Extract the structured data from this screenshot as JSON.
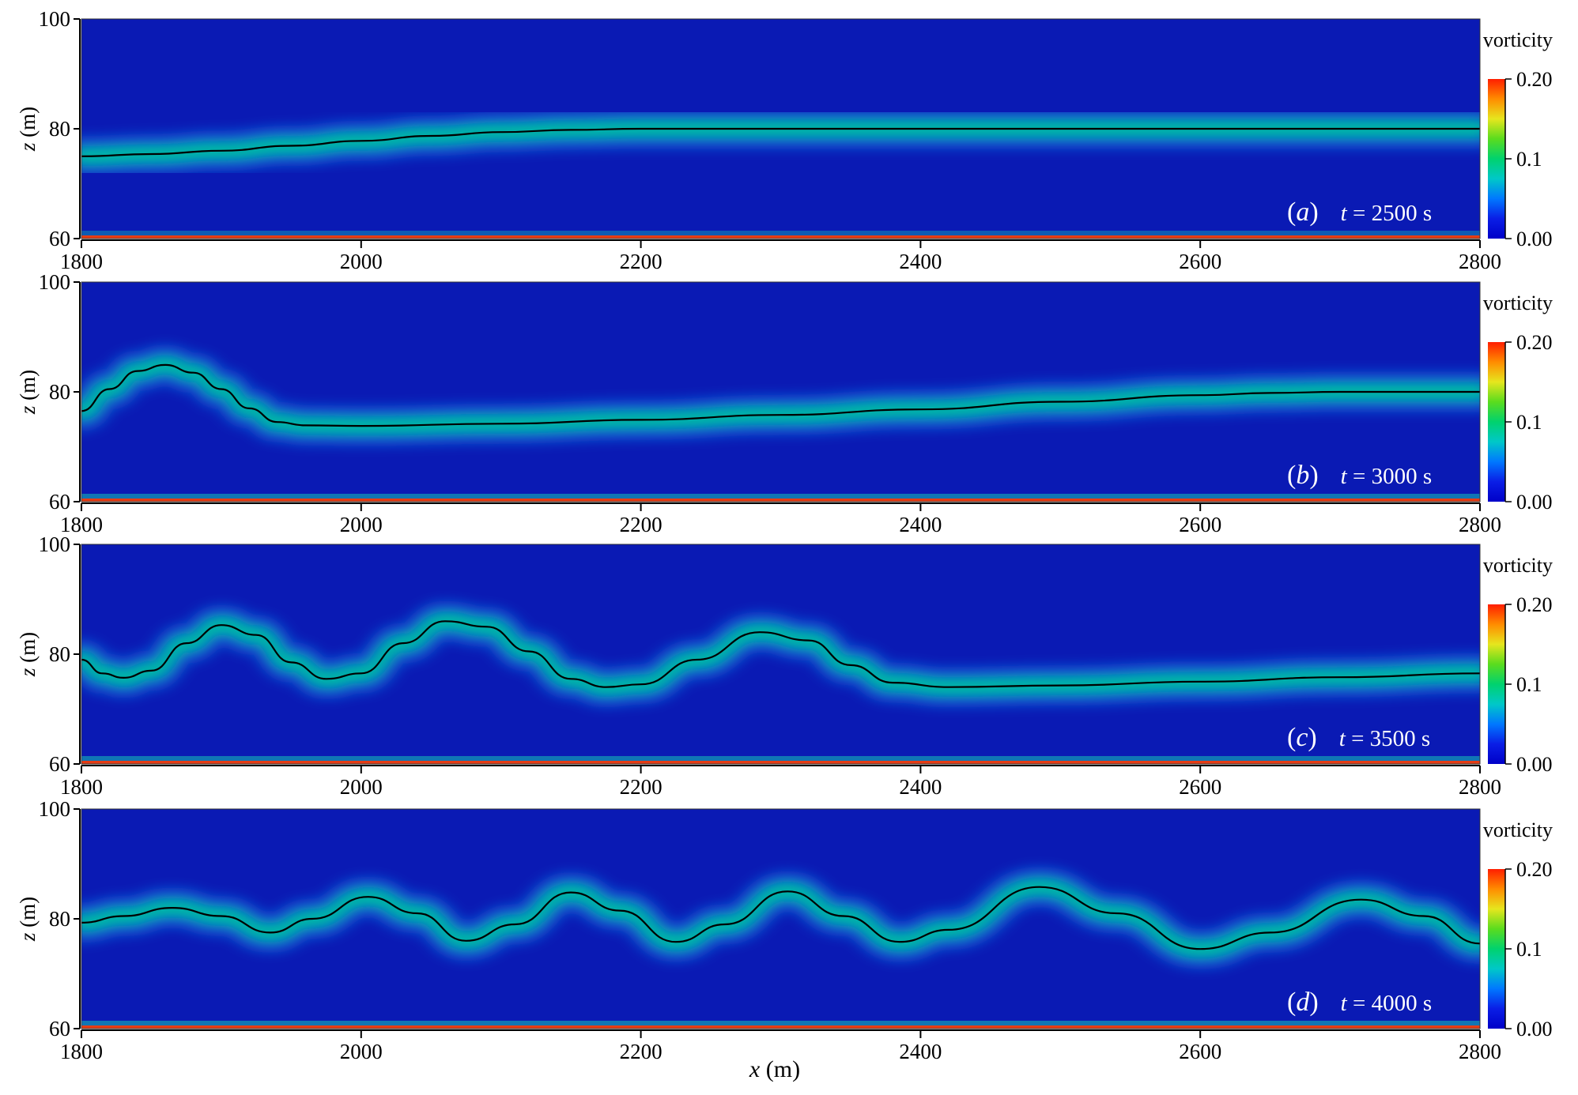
{
  "chart_data": {
    "type": "heatmap",
    "colormap": [
      "#0000c8",
      "#0a1ee6",
      "#0078ff",
      "#00c8c8",
      "#00d26e",
      "#5adc1e",
      "#e6e61e",
      "#ff8c00",
      "#ff1e00"
    ],
    "background_color": "#0a1ab4",
    "interface_color": "#000000",
    "x_axis": {
      "label_var": "x",
      "label_unit": " (m)",
      "range": [
        1800,
        2800
      ],
      "ticks": [
        "1800",
        "2000",
        "2200",
        "2400",
        "2600",
        "2800"
      ]
    },
    "y_axis": {
      "label_var": "z",
      "label_unit": " (m)",
      "range": [
        60,
        100
      ],
      "ticks": [
        "60",
        "80",
        "100"
      ]
    },
    "colorbar": {
      "title": "vorticity",
      "range": [
        0,
        0.2
      ],
      "ticks": [
        "0.00",
        "0.1",
        "0.20"
      ]
    },
    "panels": [
      {
        "letter": "a",
        "time_label": "t",
        "time_text": " = 2500 s",
        "interface": [
          [
            1800,
            75.0
          ],
          [
            1850,
            75.4
          ],
          [
            1900,
            76.0
          ],
          [
            1950,
            76.9
          ],
          [
            2000,
            77.8
          ],
          [
            2050,
            78.7
          ],
          [
            2100,
            79.4
          ],
          [
            2150,
            79.8
          ],
          [
            2200,
            80.0
          ],
          [
            2300,
            80.0
          ],
          [
            2400,
            80.0
          ],
          [
            2600,
            80.0
          ],
          [
            2800,
            80.0
          ]
        ],
        "bottom_layer_intensity": 0.15
      },
      {
        "letter": "b",
        "time_label": "t",
        "time_text": " = 3000 s",
        "interface": [
          [
            1800,
            76.5
          ],
          [
            1820,
            80.5
          ],
          [
            1840,
            83.8
          ],
          [
            1860,
            84.9
          ],
          [
            1880,
            83.5
          ],
          [
            1900,
            80.5
          ],
          [
            1920,
            77.0
          ],
          [
            1940,
            74.5
          ],
          [
            1960,
            73.9
          ],
          [
            2000,
            73.8
          ],
          [
            2100,
            74.2
          ],
          [
            2200,
            74.9
          ],
          [
            2300,
            75.8
          ],
          [
            2400,
            76.8
          ],
          [
            2500,
            78.2
          ],
          [
            2600,
            79.4
          ],
          [
            2650,
            79.8
          ],
          [
            2700,
            80.0
          ],
          [
            2800,
            80.0
          ]
        ],
        "bottom_layer_intensity": 0.5
      },
      {
        "letter": "c",
        "time_label": "t",
        "time_text": " = 3500 s",
        "interface": [
          [
            1800,
            79.0
          ],
          [
            1815,
            76.5
          ],
          [
            1830,
            75.7
          ],
          [
            1850,
            77.0
          ],
          [
            1875,
            82.0
          ],
          [
            1900,
            85.3
          ],
          [
            1925,
            83.5
          ],
          [
            1950,
            78.5
          ],
          [
            1975,
            75.5
          ],
          [
            2000,
            76.5
          ],
          [
            2030,
            82.0
          ],
          [
            2060,
            86.0
          ],
          [
            2090,
            85.0
          ],
          [
            2120,
            80.5
          ],
          [
            2150,
            75.5
          ],
          [
            2175,
            74.0
          ],
          [
            2200,
            74.5
          ],
          [
            2240,
            79.0
          ],
          [
            2285,
            84.0
          ],
          [
            2320,
            82.5
          ],
          [
            2350,
            78.0
          ],
          [
            2380,
            74.8
          ],
          [
            2420,
            74.0
          ],
          [
            2500,
            74.3
          ],
          [
            2600,
            75.0
          ],
          [
            2700,
            75.8
          ],
          [
            2800,
            76.5
          ]
        ],
        "bottom_layer_intensity": 0.5
      },
      {
        "letter": "d",
        "time_label": "t",
        "time_text": " = 4000 s",
        "interface": [
          [
            1800,
            79.3
          ],
          [
            1830,
            80.5
          ],
          [
            1865,
            82.0
          ],
          [
            1900,
            80.5
          ],
          [
            1935,
            77.5
          ],
          [
            1965,
            80.0
          ],
          [
            2005,
            84.0
          ],
          [
            2040,
            81.0
          ],
          [
            2075,
            76.0
          ],
          [
            2110,
            79.0
          ],
          [
            2150,
            84.8
          ],
          [
            2185,
            81.5
          ],
          [
            2225,
            75.8
          ],
          [
            2260,
            79.0
          ],
          [
            2305,
            85.0
          ],
          [
            2345,
            80.5
          ],
          [
            2385,
            75.8
          ],
          [
            2420,
            78.0
          ],
          [
            2485,
            85.8
          ],
          [
            2540,
            81.0
          ],
          [
            2600,
            74.5
          ],
          [
            2650,
            77.5
          ],
          [
            2715,
            83.5
          ],
          [
            2760,
            80.5
          ],
          [
            2800,
            75.5
          ]
        ],
        "bottom_layer_intensity": 0.5
      }
    ]
  }
}
